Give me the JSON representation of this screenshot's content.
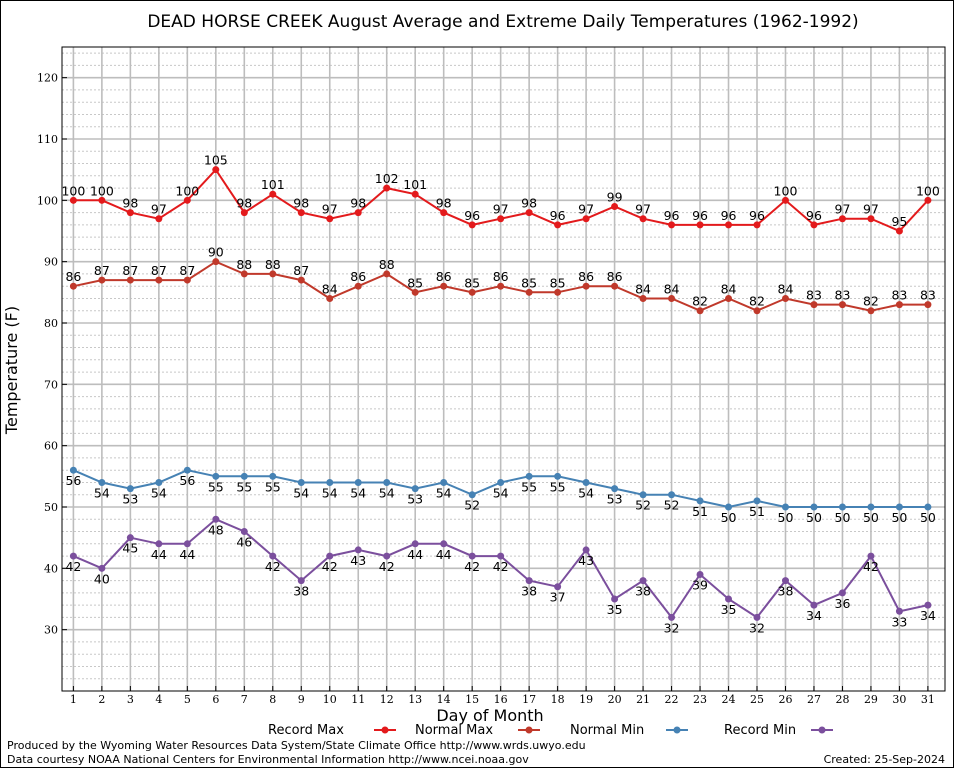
{
  "chart_data": {
    "type": "line",
    "title": "DEAD HORSE CREEK August Average and Extreme Daily Temperatures (1962-1992)",
    "xlabel": "Day of Month",
    "ylabel": "Temperature (F)",
    "xlim": [
      0.6,
      31.6
    ],
    "ylim": [
      20,
      125
    ],
    "yticks": [
      30,
      40,
      50,
      60,
      70,
      80,
      90,
      100,
      110,
      120
    ],
    "x": [
      1,
      2,
      3,
      4,
      5,
      6,
      7,
      8,
      9,
      10,
      11,
      12,
      13,
      14,
      15,
      16,
      17,
      18,
      19,
      20,
      21,
      22,
      23,
      24,
      25,
      26,
      27,
      28,
      29,
      30,
      31
    ],
    "grid": true,
    "legend_position": "bottom",
    "series": [
      {
        "name": "Record Max",
        "color": "#e31a1c",
        "label_position": "above",
        "values": [
          100,
          100,
          98,
          97,
          100,
          105,
          98,
          101,
          98,
          97,
          98,
          102,
          101,
          98,
          96,
          97,
          98,
          96,
          97,
          99,
          97,
          96,
          96,
          96,
          96,
          100,
          96,
          97,
          97,
          95,
          100
        ]
      },
      {
        "name": "Normal Max",
        "color": "#c0392b",
        "label_position": "above",
        "values": [
          86,
          87,
          87,
          87,
          87,
          90,
          88,
          88,
          87,
          84,
          86,
          88,
          85,
          86,
          85,
          86,
          85,
          85,
          86,
          86,
          84,
          84,
          82,
          84,
          82,
          84,
          83,
          83,
          82,
          83,
          83
        ]
      },
      {
        "name": "Normal Min",
        "color": "#4682b4",
        "label_position": "below",
        "values": [
          56,
          54,
          53,
          54,
          56,
          55,
          55,
          55,
          54,
          54,
          54,
          54,
          53,
          54,
          52,
          54,
          55,
          55,
          54,
          53,
          52,
          52,
          51,
          50,
          51,
          50,
          50,
          50,
          50,
          50,
          50
        ]
      },
      {
        "name": "Record Min",
        "color": "#7b4f9d",
        "label_position": "below",
        "values": [
          42,
          40,
          45,
          44,
          44,
          48,
          46,
          42,
          38,
          42,
          43,
          42,
          44,
          44,
          42,
          42,
          38,
          37,
          43,
          35,
          38,
          32,
          39,
          35,
          32,
          38,
          34,
          36,
          42,
          33,
          34
        ]
      }
    ]
  },
  "footer": {
    "produced_by": "Produced by the Wyoming Water Resources Data System/State Climate Office http://www.wrds.uwyo.edu",
    "data_courtesy": "Data courtesy NOAA National Centers for Environmental Information http://www.ncei.noaa.gov",
    "created": "Created:  25-Sep-2024"
  }
}
